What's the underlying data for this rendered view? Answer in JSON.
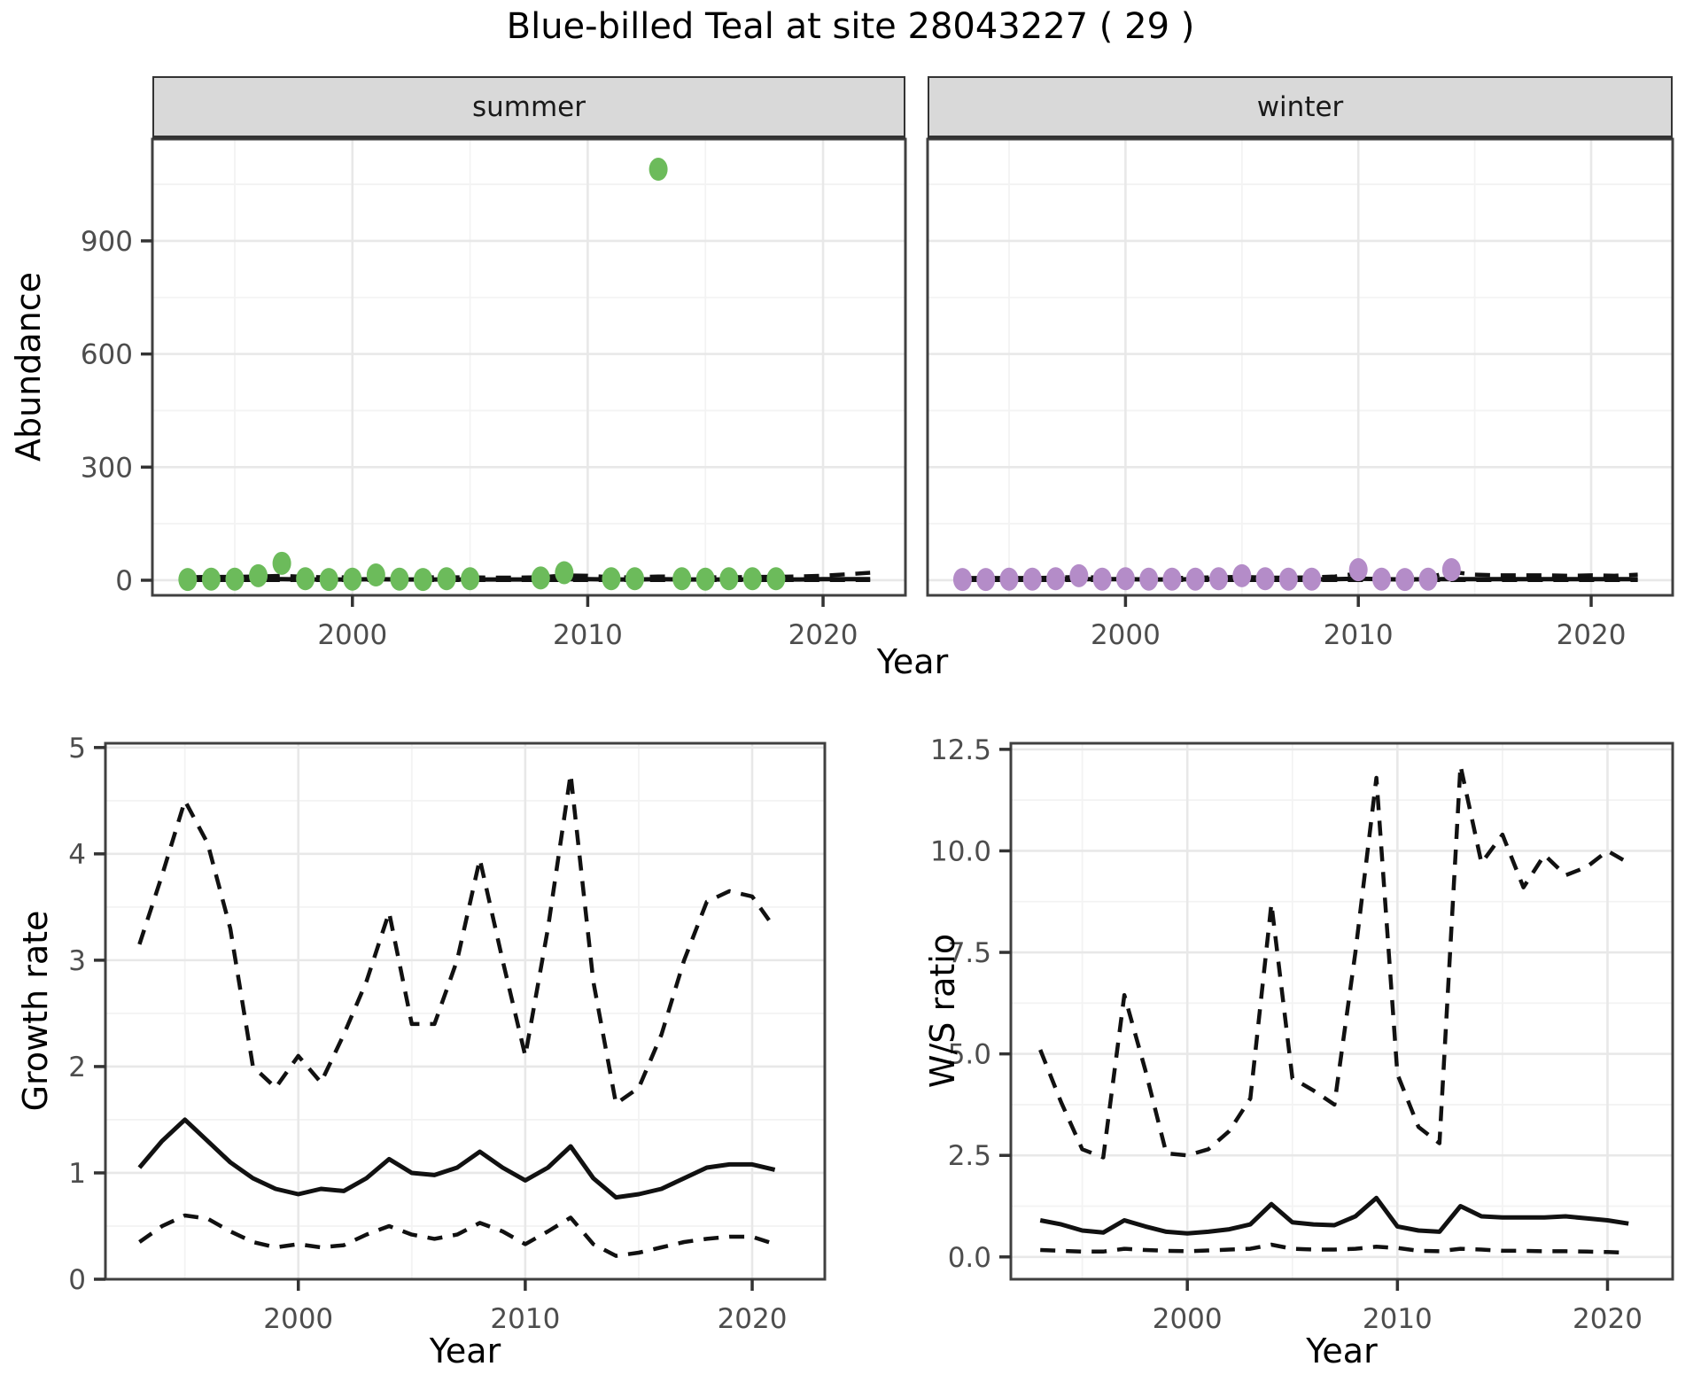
{
  "title": "Blue-billed Teal at site 28043227 ( 29 )",
  "colors": {
    "summer_point": "#6cbb5b",
    "winter_point": "#b48cc8",
    "line": "#111111",
    "tick_label": "#4d4d4d",
    "axis_tick": "#333333",
    "strip_bg": "#d9d9d9",
    "grid_major": "#e8e8e8",
    "grid_minor": "#f3f3f3",
    "panel_border": "#404040",
    "panel_bg": "#ffffff"
  },
  "chart_data": [
    {
      "type": "scatter",
      "title": "Abundance by season",
      "xlabel": "Year",
      "ylabel": "Abundance",
      "xticks": [
        2000,
        2010,
        2020
      ],
      "xtick_labels": [
        "2000",
        "2010",
        "2020"
      ],
      "yticks": [
        0,
        300,
        600,
        900
      ],
      "ytick_labels": [
        "0",
        "300",
        "600",
        "900"
      ],
      "xlim": [
        1991.5,
        2023.5
      ],
      "ylim": [
        -40,
        1170
      ],
      "grid": true,
      "legend": "none",
      "facets": [
        {
          "label": "summer",
          "point_color": "#6cbb5b",
          "points": {
            "x": [
              1993,
              1994,
              1995,
              1996,
              1997,
              1998,
              1999,
              2000,
              2001,
              2002,
              2003,
              2004,
              2005,
              2008,
              2009,
              2011,
              2012,
              2013,
              2014,
              2015,
              2016,
              2017,
              2018
            ],
            "y": [
              2,
              3,
              3,
              12,
              45,
              4,
              2,
              3,
              14,
              3,
              2,
              4,
              4,
              6,
              20,
              4,
              4,
              1090,
              4,
              3,
              4,
              4,
              4
            ]
          },
          "series": [
            {
              "name": "median",
              "style": "solid",
              "x": [
                1993,
                1994,
                1995,
                1996,
                1997,
                1998,
                1999,
                2000,
                2001,
                2002,
                2003,
                2004,
                2005,
                2006,
                2007,
                2008,
                2009,
                2010,
                2011,
                2012,
                2013,
                2014,
                2015,
                2016,
                2017,
                2018,
                2019,
                2020,
                2021,
                2022
              ],
              "y": [
                2,
                2,
                2,
                3,
                3,
                2,
                2,
                2,
                3,
                2,
                2,
                2,
                2,
                2,
                2,
                2,
                3,
                3,
                2,
                2,
                3,
                2,
                2,
                2,
                2,
                2,
                2,
                3,
                3,
                3
              ]
            },
            {
              "name": "upper_ci",
              "style": "dashed",
              "x": [
                1993,
                1994,
                1995,
                1996,
                1997,
                1998,
                1999,
                2000,
                2001,
                2002,
                2003,
                2004,
                2005,
                2006,
                2007,
                2008,
                2009,
                2010,
                2011,
                2012,
                2013,
                2014,
                2015,
                2016,
                2017,
                2018,
                2019,
                2020,
                2021,
                2022
              ],
              "y": [
                8,
                9,
                9,
                10,
                12,
                9,
                8,
                8,
                10,
                8,
                8,
                8,
                8,
                7,
                7,
                8,
                13,
                12,
                8,
                8,
                10,
                9,
                8,
                8,
                9,
                9,
                10,
                12,
                16,
                20
              ]
            },
            {
              "name": "lower_ci",
              "style": "dashed",
              "x": [
                1993,
                1994,
                1995,
                1996,
                1997,
                1998,
                1999,
                2000,
                2001,
                2002,
                2003,
                2004,
                2005,
                2006,
                2007,
                2008,
                2009,
                2010,
                2011,
                2012,
                2013,
                2014,
                2015,
                2016,
                2017,
                2018,
                2019,
                2020,
                2021,
                2022
              ],
              "y": [
                0.5,
                0.5,
                0.5,
                0.5,
                0.5,
                0.5,
                0.5,
                0.5,
                0.5,
                0.5,
                0.5,
                0.5,
                0.5,
                0.5,
                0.5,
                0.5,
                0.5,
                0.5,
                0.5,
                0.5,
                0.5,
                0.5,
                0.5,
                0.5,
                0.5,
                0.5,
                0.5,
                0.5,
                0.5,
                0.5
              ]
            }
          ]
        },
        {
          "label": "winter",
          "point_color": "#b48cc8",
          "points": {
            "x": [
              1993,
              1994,
              1995,
              1996,
              1997,
              1998,
              1999,
              2000,
              2001,
              2002,
              2003,
              2004,
              2005,
              2006,
              2007,
              2008,
              2010,
              2011,
              2012,
              2013,
              2014
            ],
            "y": [
              2,
              2,
              3,
              3,
              4,
              12,
              3,
              4,
              3,
              3,
              3,
              4,
              12,
              4,
              3,
              3,
              28,
              3,
              2,
              3,
              28
            ]
          },
          "series": [
            {
              "name": "median",
              "style": "solid",
              "x": [
                1993,
                1994,
                1995,
                1996,
                1997,
                1998,
                1999,
                2000,
                2001,
                2002,
                2003,
                2004,
                2005,
                2006,
                2007,
                2008,
                2009,
                2010,
                2011,
                2012,
                2013,
                2014,
                2015,
                2016,
                2017,
                2018,
                2019,
                2020,
                2021,
                2022
              ],
              "y": [
                2,
                2,
                2,
                2,
                3,
                3,
                3,
                3,
                2,
                2,
                3,
                3,
                3,
                3,
                2,
                2,
                3,
                4,
                3,
                2,
                3,
                3,
                3,
                3,
                3,
                3,
                3,
                3,
                3,
                3
              ]
            },
            {
              "name": "upper_ci",
              "style": "dashed",
              "x": [
                1993,
                1994,
                1995,
                1996,
                1997,
                1998,
                1999,
                2000,
                2001,
                2002,
                2003,
                2004,
                2005,
                2006,
                2007,
                2008,
                2009,
                2010,
                2011,
                2012,
                2013,
                2014,
                2015,
                2016,
                2017,
                2018,
                2019,
                2020,
                2021,
                2022
              ],
              "y": [
                6,
                6,
                6,
                6,
                7,
                9,
                7,
                7,
                6,
                6,
                7,
                8,
                9,
                7,
                7,
                8,
                10,
                18,
                8,
                7,
                8,
                22,
                15,
                13,
                13,
                13,
                12,
                13,
                12,
                15
              ]
            },
            {
              "name": "lower_ci",
              "style": "dashed",
              "x": [
                1993,
                1994,
                1995,
                1996,
                1997,
                1998,
                1999,
                2000,
                2001,
                2002,
                2003,
                2004,
                2005,
                2006,
                2007,
                2008,
                2009,
                2010,
                2011,
                2012,
                2013,
                2014,
                2015,
                2016,
                2017,
                2018,
                2019,
                2020,
                2021,
                2022
              ],
              "y": [
                0.5,
                0.5,
                0.5,
                0.5,
                0.5,
                0.5,
                0.5,
                0.5,
                0.5,
                0.5,
                0.5,
                0.5,
                0.5,
                0.5,
                0.5,
                0.5,
                0.5,
                0.5,
                0.5,
                0.5,
                0.5,
                0.5,
                0.5,
                0.5,
                0.5,
                0.5,
                0.5,
                0.5,
                0.5,
                0.5
              ]
            }
          ]
        }
      ]
    },
    {
      "type": "line",
      "title": "Growth rate",
      "xlabel": "Year",
      "ylabel": "Growth rate",
      "xticks": [
        2000,
        2010,
        2020
      ],
      "xtick_labels": [
        "2000",
        "2010",
        "2020"
      ],
      "yticks": [
        0,
        1,
        2,
        3,
        4,
        5
      ],
      "ytick_labels": [
        "0",
        "1",
        "2",
        "3",
        "4",
        "5"
      ],
      "xlim": [
        1991.5,
        2023.2
      ],
      "ylim": [
        0,
        5.04
      ],
      "grid": true,
      "legend": "none",
      "x": [
        1993,
        1994,
        1995,
        1996,
        1997,
        1998,
        1999,
        2000,
        2001,
        2002,
        2003,
        2004,
        2005,
        2006,
        2007,
        2008,
        2009,
        2010,
        2011,
        2012,
        2013,
        2014,
        2015,
        2016,
        2017,
        2018,
        2019,
        2020,
        2021
      ],
      "series": [
        {
          "name": "upper_ci",
          "style": "dashed",
          "y": [
            3.15,
            3.8,
            4.5,
            4.1,
            3.3,
            2.0,
            1.8,
            2.1,
            1.85,
            2.3,
            2.8,
            3.45,
            2.4,
            2.4,
            3.0,
            3.95,
            3.0,
            2.1,
            3.3,
            4.75,
            2.8,
            1.65,
            1.8,
            2.3,
            3.0,
            3.55,
            3.65,
            3.6,
            3.3
          ]
        },
        {
          "name": "median",
          "style": "solid",
          "y": [
            1.05,
            1.3,
            1.5,
            1.3,
            1.1,
            0.95,
            0.85,
            0.8,
            0.85,
            0.83,
            0.95,
            1.13,
            1.0,
            0.98,
            1.05,
            1.2,
            1.05,
            0.93,
            1.05,
            1.25,
            0.95,
            0.77,
            0.8,
            0.85,
            0.95,
            1.05,
            1.08,
            1.08,
            1.03
          ]
        },
        {
          "name": "lower_ci",
          "style": "dashed",
          "y": [
            0.35,
            0.5,
            0.6,
            0.57,
            0.45,
            0.35,
            0.3,
            0.33,
            0.3,
            0.32,
            0.42,
            0.5,
            0.42,
            0.38,
            0.42,
            0.53,
            0.45,
            0.33,
            0.45,
            0.58,
            0.33,
            0.22,
            0.25,
            0.3,
            0.35,
            0.38,
            0.4,
            0.4,
            0.33
          ]
        }
      ]
    },
    {
      "type": "line",
      "title": "W/S ratio",
      "xlabel": "Year",
      "ylabel": "W/S ratio",
      "xticks": [
        2000,
        2010,
        2020
      ],
      "xtick_labels": [
        "2000",
        "2010",
        "2020"
      ],
      "yticks": [
        0,
        2.5,
        5,
        7.5,
        10,
        12.5
      ],
      "ytick_labels": [
        "0.0",
        "2.5",
        "5.0",
        "7.5",
        "10.0",
        "12.5"
      ],
      "xlim": [
        1991.6,
        2023.1
      ],
      "ylim": [
        -0.55,
        12.65
      ],
      "grid": true,
      "legend": "none",
      "x": [
        1993,
        1994,
        1995,
        1996,
        1997,
        1998,
        1999,
        2000,
        2001,
        2002,
        2003,
        2004,
        2005,
        2006,
        2007,
        2008,
        2009,
        2010,
        2011,
        2012,
        2013,
        2014,
        2015,
        2016,
        2017,
        2018,
        2019,
        2020,
        2021
      ],
      "series": [
        {
          "name": "upper_ci",
          "style": "dashed",
          "y": [
            5.1,
            3.8,
            2.65,
            2.45,
            6.45,
            4.6,
            2.55,
            2.5,
            2.65,
            3.1,
            3.9,
            8.7,
            4.4,
            4.1,
            3.75,
            7.5,
            11.8,
            4.5,
            3.2,
            2.8,
            12.1,
            9.7,
            10.4,
            9.1,
            9.9,
            9.4,
            9.6,
            10.0,
            9.7
          ]
        },
        {
          "name": "median",
          "style": "solid",
          "y": [
            0.9,
            0.8,
            0.65,
            0.6,
            0.9,
            0.75,
            0.62,
            0.58,
            0.62,
            0.68,
            0.8,
            1.3,
            0.85,
            0.8,
            0.78,
            1.0,
            1.45,
            0.75,
            0.65,
            0.62,
            1.25,
            1.0,
            0.97,
            0.97,
            0.97,
            1.0,
            0.95,
            0.9,
            0.82
          ]
        },
        {
          "name": "lower_ci",
          "style": "dashed",
          "y": [
            0.17,
            0.15,
            0.13,
            0.13,
            0.2,
            0.17,
            0.15,
            0.14,
            0.16,
            0.18,
            0.2,
            0.3,
            0.2,
            0.18,
            0.18,
            0.2,
            0.25,
            0.22,
            0.15,
            0.14,
            0.2,
            0.18,
            0.15,
            0.15,
            0.14,
            0.14,
            0.13,
            0.12,
            0.1
          ]
        }
      ]
    }
  ]
}
